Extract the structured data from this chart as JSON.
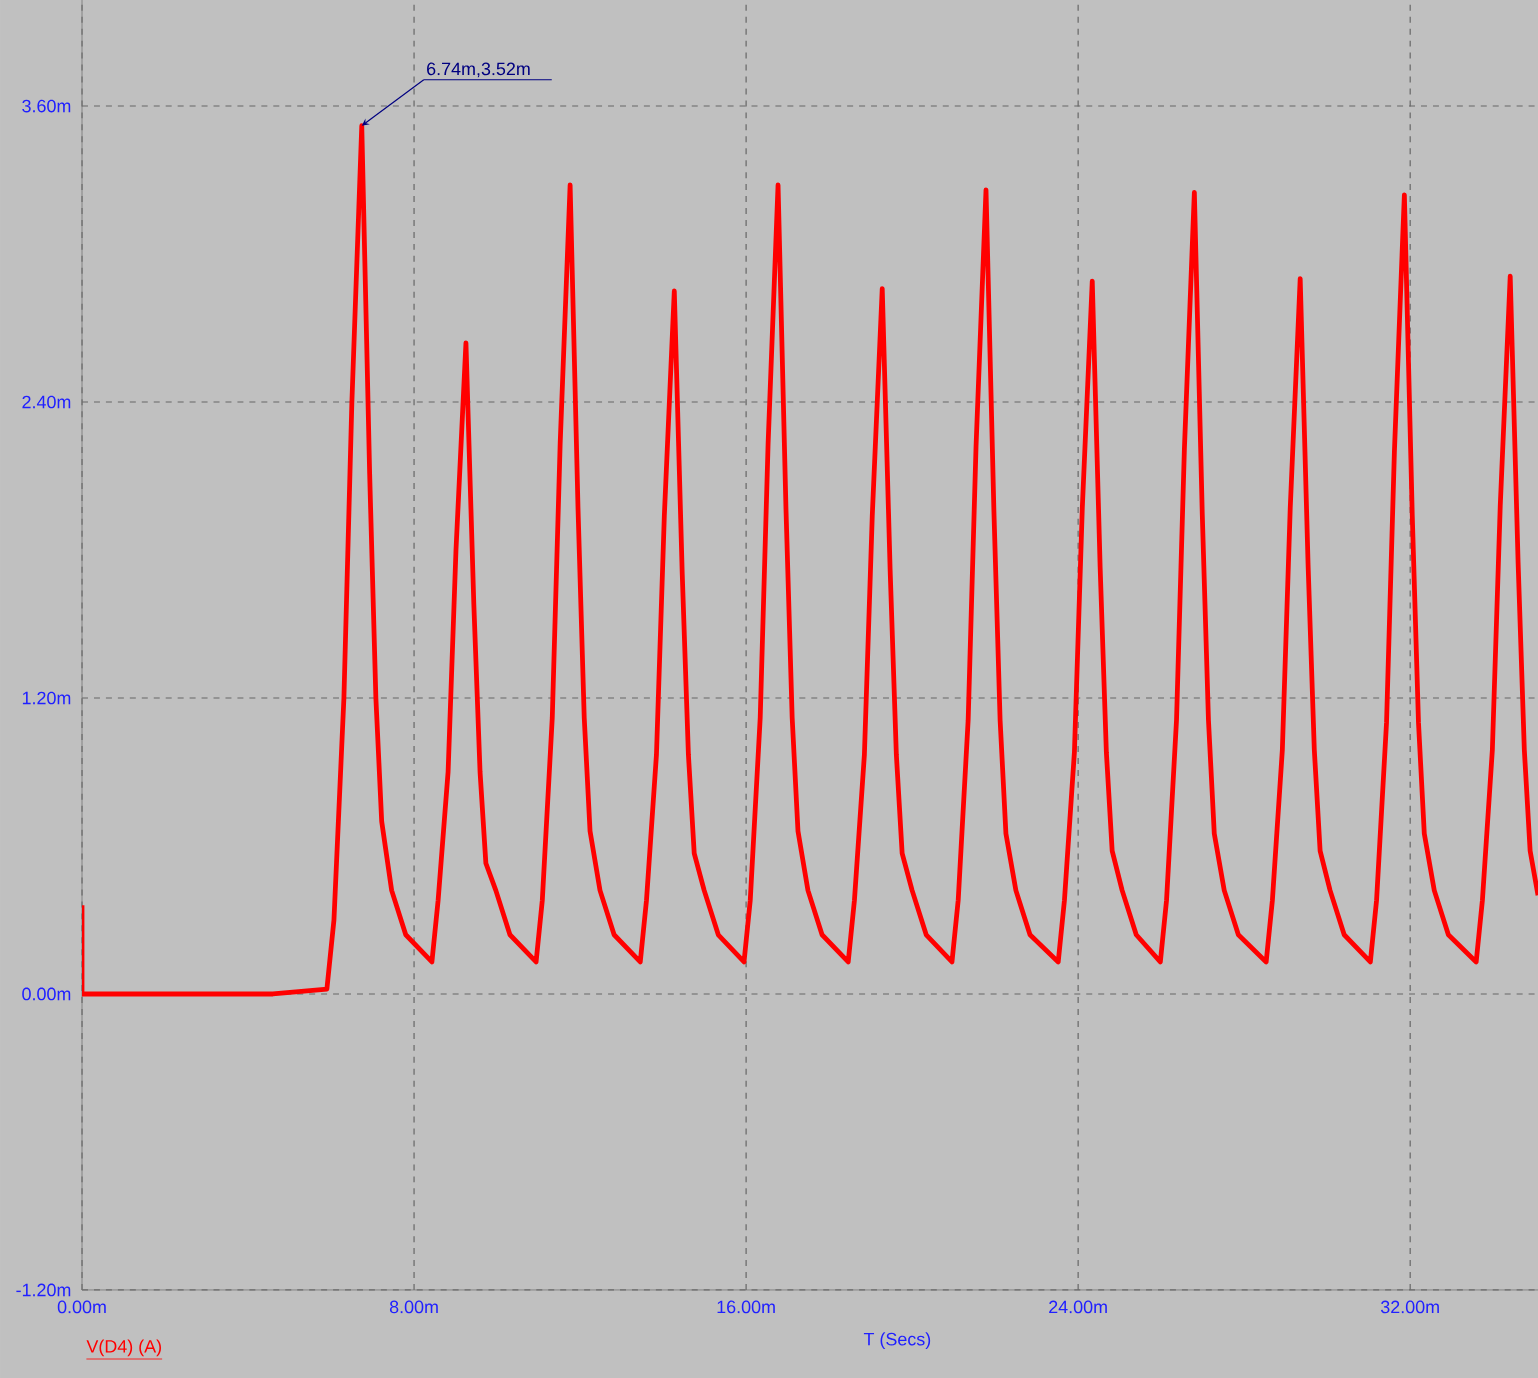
{
  "chart_data": {
    "type": "line",
    "xlabel": "T (Secs)",
    "legend": "bottom left",
    "grid": true,
    "xlim": [
      0,
      35.08
    ],
    "ylim": [
      -1.2,
      4.03
    ],
    "xticks": [
      {
        "value": 0,
        "label": "0.00m"
      },
      {
        "value": 8,
        "label": "8.00m"
      },
      {
        "value": 16,
        "label": "16.00m"
      },
      {
        "value": 24,
        "label": "24.00m"
      },
      {
        "value": 32,
        "label": "32.00m"
      }
    ],
    "yticks": [
      {
        "value": -1.2,
        "label": "-1.20m"
      },
      {
        "value": 0,
        "label": "0.00m"
      },
      {
        "value": 1.2,
        "label": "1.20m"
      },
      {
        "value": 2.4,
        "label": "2.40m"
      },
      {
        "value": 3.6,
        "label": "3.60m"
      }
    ],
    "annotations": [
      {
        "text": "6.74m,3.52m",
        "x": 6.74,
        "y": 3.52
      }
    ],
    "series": [
      {
        "name": "V(D4) (A)",
        "color": "#ff0000",
        "x": [
          0,
          0,
          4.6,
          5.9,
          6.07,
          6.31,
          6.5,
          6.74,
          6.93,
          7.08,
          7.22,
          7.46,
          7.8,
          8.43,
          8.58,
          8.82,
          9.01,
          9.25,
          9.44,
          9.59,
          9.73,
          9.97,
          10.31,
          10.94,
          11.09,
          11.33,
          11.52,
          11.76,
          11.95,
          12.1,
          12.24,
          12.48,
          12.82,
          13.45,
          13.6,
          13.84,
          14.03,
          14.27,
          14.46,
          14.61,
          14.75,
          14.99,
          15.33,
          15.95,
          16.1,
          16.34,
          16.53,
          16.77,
          16.96,
          17.11,
          17.25,
          17.49,
          17.83,
          18.46,
          18.61,
          18.85,
          19.04,
          19.28,
          19.47,
          19.62,
          19.76,
          20.0,
          20.34,
          20.96,
          21.11,
          21.35,
          21.54,
          21.78,
          21.97,
          22.12,
          22.26,
          22.5,
          22.84,
          23.52,
          23.67,
          23.91,
          24.1,
          24.34,
          24.53,
          24.68,
          24.82,
          25.06,
          25.4,
          25.98,
          26.13,
          26.37,
          26.56,
          26.8,
          26.99,
          27.14,
          27.28,
          27.52,
          27.86,
          28.53,
          28.68,
          28.92,
          29.11,
          29.35,
          29.54,
          29.69,
          29.83,
          30.07,
          30.41,
          31.04,
          31.19,
          31.43,
          31.62,
          31.86,
          32.05,
          32.2,
          32.34,
          32.58,
          32.92,
          33.59,
          33.74,
          33.98,
          34.17,
          34.41,
          34.6,
          34.75,
          34.89,
          35.08
        ],
        "values": [
          0.36,
          0,
          0,
          0.02,
          0.3,
          1.2,
          2.39,
          3.52,
          2.11,
          1.2,
          0.7,
          0.42,
          0.24,
          0.13,
          0.38,
          0.9,
          1.8,
          2.64,
          1.58,
          0.9,
          0.53,
          0.42,
          0.24,
          0.13,
          0.38,
          1.12,
          2.23,
          3.28,
          1.97,
          1.12,
          0.66,
          0.42,
          0.24,
          0.13,
          0.38,
          0.97,
          1.94,
          2.85,
          1.71,
          0.97,
          0.57,
          0.42,
          0.24,
          0.13,
          0.38,
          1.12,
          2.23,
          3.28,
          1.97,
          1.12,
          0.66,
          0.42,
          0.24,
          0.13,
          0.38,
          0.97,
          1.94,
          2.86,
          1.72,
          0.97,
          0.57,
          0.42,
          0.24,
          0.13,
          0.38,
          1.11,
          2.22,
          3.26,
          1.96,
          1.11,
          0.65,
          0.42,
          0.24,
          0.13,
          0.38,
          0.98,
          1.97,
          2.89,
          1.73,
          0.98,
          0.58,
          0.42,
          0.24,
          0.13,
          0.38,
          1.11,
          2.21,
          3.25,
          1.95,
          1.11,
          0.65,
          0.42,
          0.24,
          0.13,
          0.38,
          0.99,
          1.97,
          2.9,
          1.74,
          0.99,
          0.58,
          0.42,
          0.24,
          0.13,
          0.38,
          1.1,
          2.2,
          3.24,
          1.94,
          1.1,
          0.65,
          0.42,
          0.24,
          0.13,
          0.38,
          0.99,
          1.98,
          2.91,
          1.75,
          0.99,
          0.58,
          0.4
        ]
      }
    ]
  }
}
